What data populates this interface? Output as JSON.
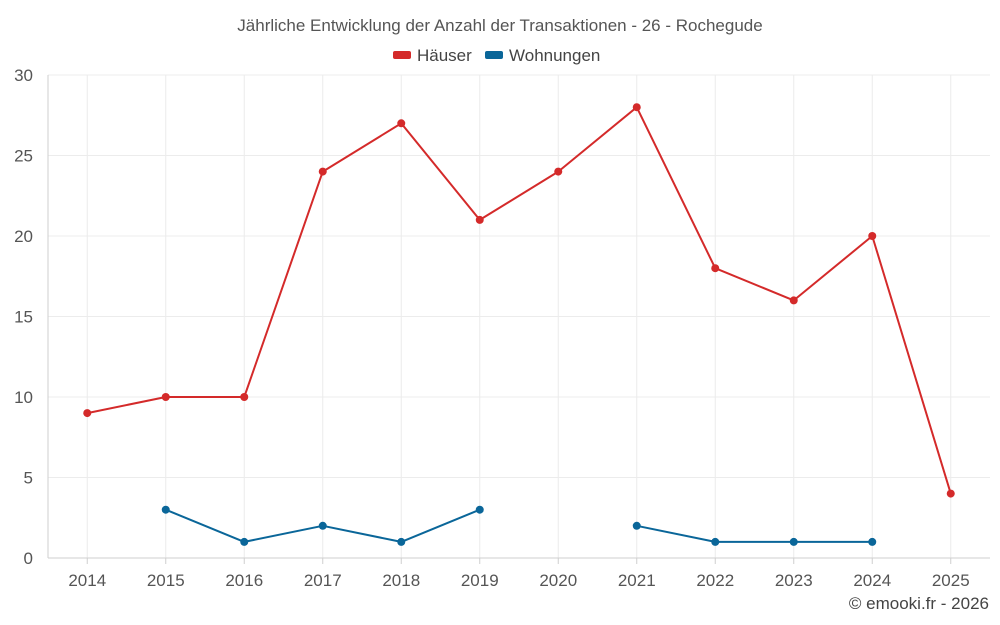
{
  "chart_data": {
    "type": "line",
    "title": "Jährliche Entwicklung der Anzahl der Transaktionen - 26 - Rochegude",
    "categories": [
      "2014",
      "2015",
      "2016",
      "2017",
      "2018",
      "2019",
      "2020",
      "2021",
      "2022",
      "2023",
      "2024",
      "2025"
    ],
    "series": [
      {
        "name": "Häuser",
        "color": "#d42a2a",
        "values": [
          9,
          10,
          10,
          24,
          27,
          21,
          24,
          28,
          18,
          16,
          20,
          4
        ]
      },
      {
        "name": "Wohnungen",
        "color": "#0a6699",
        "values": [
          null,
          3,
          1,
          2,
          1,
          3,
          null,
          2,
          1,
          1,
          1,
          null
        ]
      }
    ],
    "yticks": [
      0,
      5,
      10,
      15,
      20,
      25,
      30
    ],
    "ylim": [
      0,
      30
    ],
    "legend_position": "top-center",
    "grid": true,
    "xlabel": "",
    "ylabel": ""
  },
  "footer": "© emooki.fr - 2026"
}
